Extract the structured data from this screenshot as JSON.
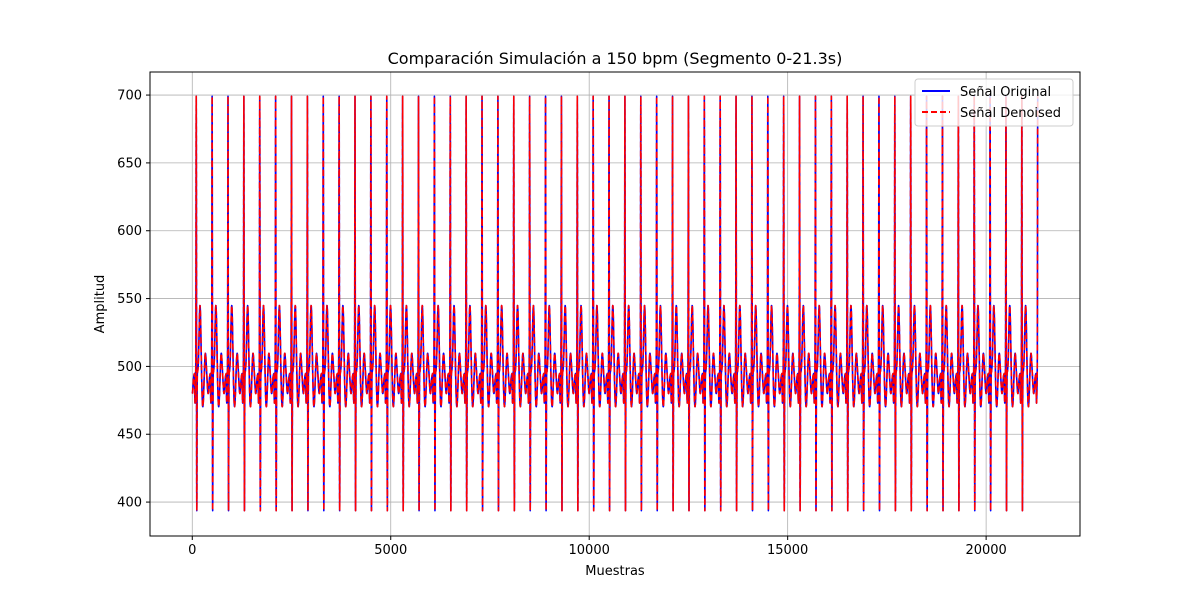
{
  "chart_data": {
    "type": "line",
    "title": "Comparación Simulación a 150 bpm (Segmento 0-21.3s)",
    "xlabel": "Muestras",
    "ylabel": "Amplitud",
    "xlim": [
      -1065,
      22365
    ],
    "ylim": [
      375,
      717
    ],
    "x_ticks": [
      0,
      5000,
      10000,
      15000,
      20000
    ],
    "x_tick_labels": [
      "0",
      "5000",
      "10000",
      "15000",
      "20000"
    ],
    "y_ticks": [
      400,
      450,
      500,
      550,
      600,
      650,
      700
    ],
    "y_tick_labels": [
      "400",
      "450",
      "500",
      "550",
      "600",
      "650",
      "700"
    ],
    "grid": true,
    "legend_position": "top-right",
    "beat_period_samples": 400,
    "first_beat_sample": 100,
    "signal_length_samples": 21300,
    "peak_max": 700,
    "trough_min": 392,
    "baseline": 495,
    "t_wave_peak": 545,
    "series": [
      {
        "name": "Señal Original",
        "color": "#0000ff",
        "style": "solid"
      },
      {
        "name": "Señal Denoised",
        "color": "#ff0000",
        "style": "dashed"
      }
    ]
  }
}
